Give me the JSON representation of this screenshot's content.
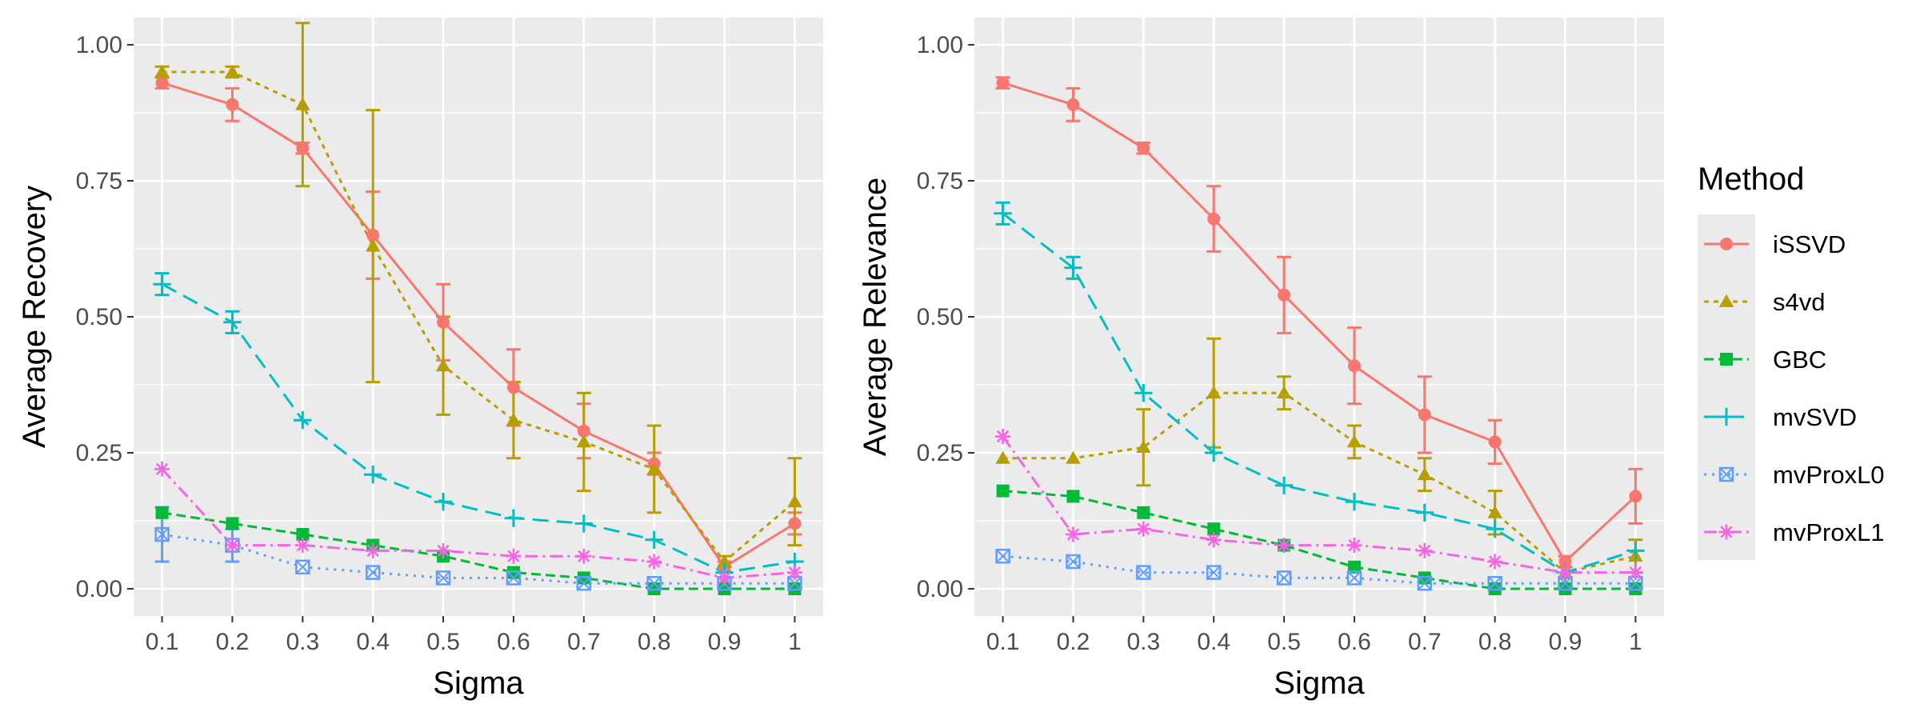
{
  "legend": {
    "title": "Method",
    "items": [
      {
        "label": "iSSVD",
        "color": "#F8766D",
        "shape": "circle",
        "dash": ""
      },
      {
        "label": "s4vd",
        "color": "#B79F00",
        "shape": "triangle",
        "dash": "6,6"
      },
      {
        "label": "GBC",
        "color": "#00BA38",
        "shape": "square",
        "dash": "12,6"
      },
      {
        "label": "mvSVD",
        "color": "#00BFC4",
        "shape": "plus",
        "dash": "20,10"
      },
      {
        "label": "mvProxL0",
        "color": "#619CFF",
        "shape": "boxcross",
        "dash": "3,7"
      },
      {
        "label": "mvProxL1",
        "color": "#F564E3",
        "shape": "asterisk",
        "dash": "16,6,3,6"
      }
    ]
  },
  "chart_data": [
    {
      "type": "line",
      "xlabel": "Sigma",
      "ylabel": "Average Recovery",
      "x": [
        0.1,
        0.2,
        0.3,
        0.4,
        0.5,
        0.6,
        0.7,
        0.8,
        0.9,
        1
      ],
      "x_tick_labels": [
        "0.1",
        "0.2",
        "0.3",
        "0.4",
        "0.5",
        "0.6",
        "0.7",
        "0.8",
        "0.9",
        "1"
      ],
      "ylim": [
        -0.05,
        1.05
      ],
      "y_ticks": [
        0,
        0.25,
        0.5,
        0.75,
        1
      ],
      "y_tick_labels": [
        "0.00",
        "0.25",
        "0.50",
        "0.75",
        "1.00"
      ],
      "grid": true,
      "series": [
        {
          "name": "iSSVD",
          "values": [
            0.93,
            0.89,
            0.81,
            0.65,
            0.49,
            0.37,
            0.29,
            0.23,
            0.04,
            0.12
          ],
          "errors": [
            0.01,
            0.03,
            0.01,
            0.08,
            0.07,
            0.07,
            0.05,
            0.02,
            0.01,
            0.02
          ]
        },
        {
          "name": "s4vd",
          "values": [
            0.95,
            0.95,
            0.89,
            0.63,
            0.41,
            0.31,
            0.27,
            0.22,
            0.05,
            0.16
          ],
          "errors": [
            0.01,
            0.01,
            0.15,
            0.25,
            0.09,
            0.07,
            0.09,
            0.08,
            0.01,
            0.08
          ]
        },
        {
          "name": "GBC",
          "values": [
            0.14,
            0.12,
            0.1,
            0.08,
            0.06,
            0.03,
            0.02,
            0.0,
            0.0,
            0.0
          ],
          "errors": [
            0,
            0,
            0,
            0,
            0,
            0,
            0,
            0,
            0,
            0
          ]
        },
        {
          "name": "mvSVD",
          "values": [
            0.56,
            0.49,
            0.31,
            0.21,
            0.16,
            0.13,
            0.12,
            0.09,
            0.03,
            0.05
          ],
          "errors": [
            0.02,
            0.02,
            0,
            0,
            0,
            0,
            0,
            0,
            0,
            0
          ]
        },
        {
          "name": "mvProxL0",
          "values": [
            0.1,
            0.08,
            0.04,
            0.03,
            0.02,
            0.02,
            0.01,
            0.01,
            0.01,
            0.01
          ],
          "errors": [
            0.05,
            0.03,
            0,
            0,
            0,
            0,
            0,
            0,
            0,
            0
          ]
        },
        {
          "name": "mvProxL1",
          "values": [
            0.22,
            0.08,
            0.08,
            0.07,
            0.07,
            0.06,
            0.06,
            0.05,
            0.02,
            0.03
          ],
          "errors": [
            0,
            0,
            0,
            0,
            0,
            0,
            0,
            0,
            0,
            0
          ]
        }
      ]
    },
    {
      "type": "line",
      "xlabel": "Sigma",
      "ylabel": "Average Relevance",
      "x": [
        0.1,
        0.2,
        0.3,
        0.4,
        0.5,
        0.6,
        0.7,
        0.8,
        0.9,
        1
      ],
      "x_tick_labels": [
        "0.1",
        "0.2",
        "0.3",
        "0.4",
        "0.5",
        "0.6",
        "0.7",
        "0.8",
        "0.9",
        "1"
      ],
      "ylim": [
        -0.05,
        1.05
      ],
      "y_ticks": [
        0,
        0.25,
        0.5,
        0.75,
        1
      ],
      "y_tick_labels": [
        "0.00",
        "0.25",
        "0.50",
        "0.75",
        "1.00"
      ],
      "grid": true,
      "series": [
        {
          "name": "iSSVD",
          "values": [
            0.93,
            0.89,
            0.81,
            0.68,
            0.54,
            0.41,
            0.32,
            0.27,
            0.05,
            0.17
          ],
          "errors": [
            0.01,
            0.03,
            0.01,
            0.06,
            0.07,
            0.07,
            0.07,
            0.04,
            0.01,
            0.05
          ]
        },
        {
          "name": "s4vd",
          "values": [
            0.24,
            0.24,
            0.26,
            0.36,
            0.36,
            0.27,
            0.21,
            0.14,
            0.03,
            0.06
          ],
          "errors": [
            0,
            0,
            0.07,
            0.1,
            0.03,
            0.03,
            0.03,
            0.04,
            0.01,
            0.03
          ]
        },
        {
          "name": "GBC",
          "values": [
            0.18,
            0.17,
            0.14,
            0.11,
            0.08,
            0.04,
            0.02,
            0.0,
            0.0,
            0.0
          ],
          "errors": [
            0,
            0,
            0,
            0,
            0,
            0,
            0,
            0,
            0,
            0
          ]
        },
        {
          "name": "mvSVD",
          "values": [
            0.69,
            0.59,
            0.36,
            0.25,
            0.19,
            0.16,
            0.14,
            0.11,
            0.03,
            0.07
          ],
          "errors": [
            0.02,
            0.02,
            0,
            0,
            0,
            0,
            0,
            0,
            0,
            0
          ]
        },
        {
          "name": "mvProxL0",
          "values": [
            0.06,
            0.05,
            0.03,
            0.03,
            0.02,
            0.02,
            0.01,
            0.01,
            0.01,
            0.01
          ],
          "errors": [
            0,
            0,
            0,
            0,
            0,
            0,
            0,
            0,
            0,
            0
          ]
        },
        {
          "name": "mvProxL1",
          "values": [
            0.28,
            0.1,
            0.11,
            0.09,
            0.08,
            0.08,
            0.07,
            0.05,
            0.03,
            0.03
          ],
          "errors": [
            0,
            0,
            0,
            0,
            0,
            0,
            0,
            0,
            0,
            0
          ]
        }
      ]
    }
  ]
}
